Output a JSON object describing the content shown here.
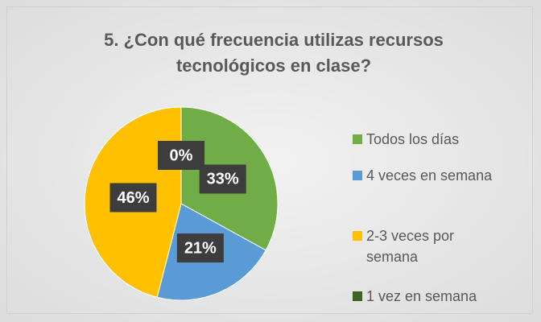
{
  "chart_data": {
    "type": "pie",
    "title": "5. ¿Con qué frecuencia utilizas recursos tecnológicos en clase?",
    "categories": [
      "Todos los días",
      "4 veces en semana",
      "2-3 veces por semana",
      "1 vez en semana"
    ],
    "values": [
      33,
      21,
      46,
      0
    ],
    "value_labels": [
      "33%",
      "21%",
      "46%",
      "0%"
    ],
    "colors": [
      "#70ad47",
      "#5b9bd5",
      "#ffc000",
      "#3b6428"
    ],
    "legend": "right"
  }
}
